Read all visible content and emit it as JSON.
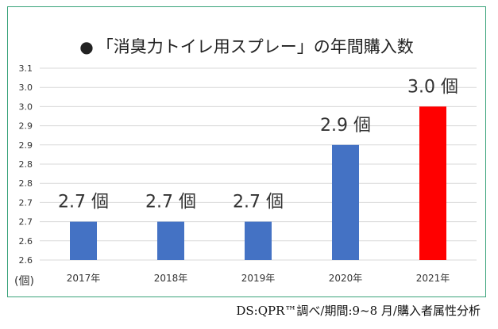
{
  "colors": {
    "bar_default": "#4472c4",
    "bar_highlight": "#ff0000",
    "grid": "#d9d9d9",
    "frame": "#3aa37a"
  },
  "chart_data": {
    "type": "bar",
    "title": "●「消臭力トイレ用スプレー」の年間購入数",
    "title_bullet": "●",
    "title_text": "「消臭力トイレ用スプレー」の年間購入数",
    "categories": [
      "2017年",
      "2018年",
      "2019年",
      "2020年",
      "2021年"
    ],
    "values": [
      2.7,
      2.7,
      2.7,
      2.9,
      3.0
    ],
    "data_labels": [
      "2.7 個",
      "2.7 個",
      "2.7 個",
      "2.9 個",
      "3.0 個"
    ],
    "highlight_index": 4,
    "ylim": [
      2.6,
      3.1
    ],
    "yticks": [
      "2.6",
      "2.6",
      "2.7",
      "2.7",
      "2.8",
      "2.8",
      "2.9",
      "2.9",
      "3.0",
      "3.0",
      "3.1"
    ],
    "ylabel": "(個)",
    "xlabel": "",
    "grid": true,
    "source": "DS:QPR™調べ/期間:9~8 月/購入者属性分析"
  }
}
